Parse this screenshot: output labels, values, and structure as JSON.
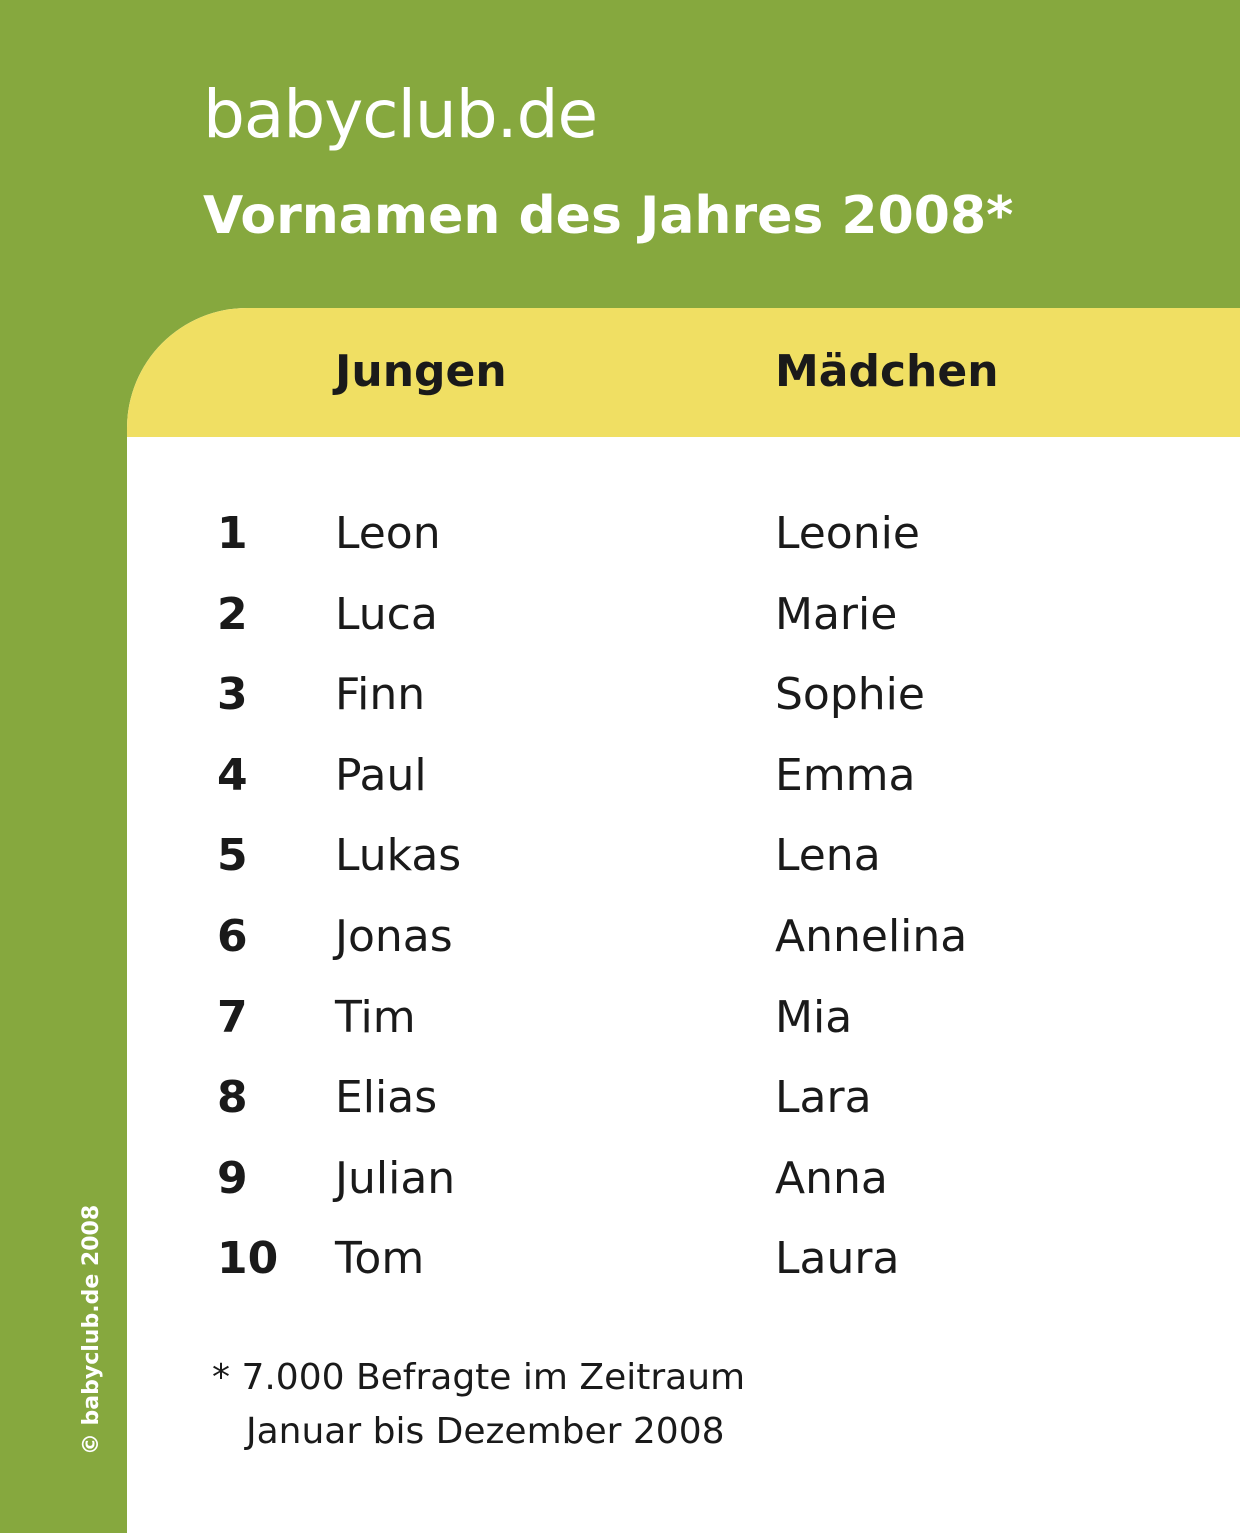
{
  "header": {
    "site": "babyclub.de",
    "title": "Vornamen des Jahres 2008*"
  },
  "table": {
    "columns": [
      "Jungen",
      "Mädchen"
    ],
    "rows": [
      [
        1,
        "Leon",
        "Leonie"
      ],
      [
        2,
        "Luca",
        "Marie"
      ],
      [
        3,
        "Finn",
        "Sophie"
      ],
      [
        4,
        "Paul",
        "Emma"
      ],
      [
        5,
        "Lukas",
        "Lena"
      ],
      [
        6,
        "Jonas",
        "Annelina"
      ],
      [
        7,
        "Tim",
        "Mia"
      ],
      [
        8,
        "Elias",
        "Lara"
      ],
      [
        9,
        "Julian",
        "Anna"
      ],
      [
        10,
        "Tom",
        "Laura"
      ]
    ]
  },
  "footnote": [
    "* 7.000 Befragte im Zeitraum",
    "Januar bis Dezember 2008"
  ],
  "copyright": "© babyclub.de 2008"
}
